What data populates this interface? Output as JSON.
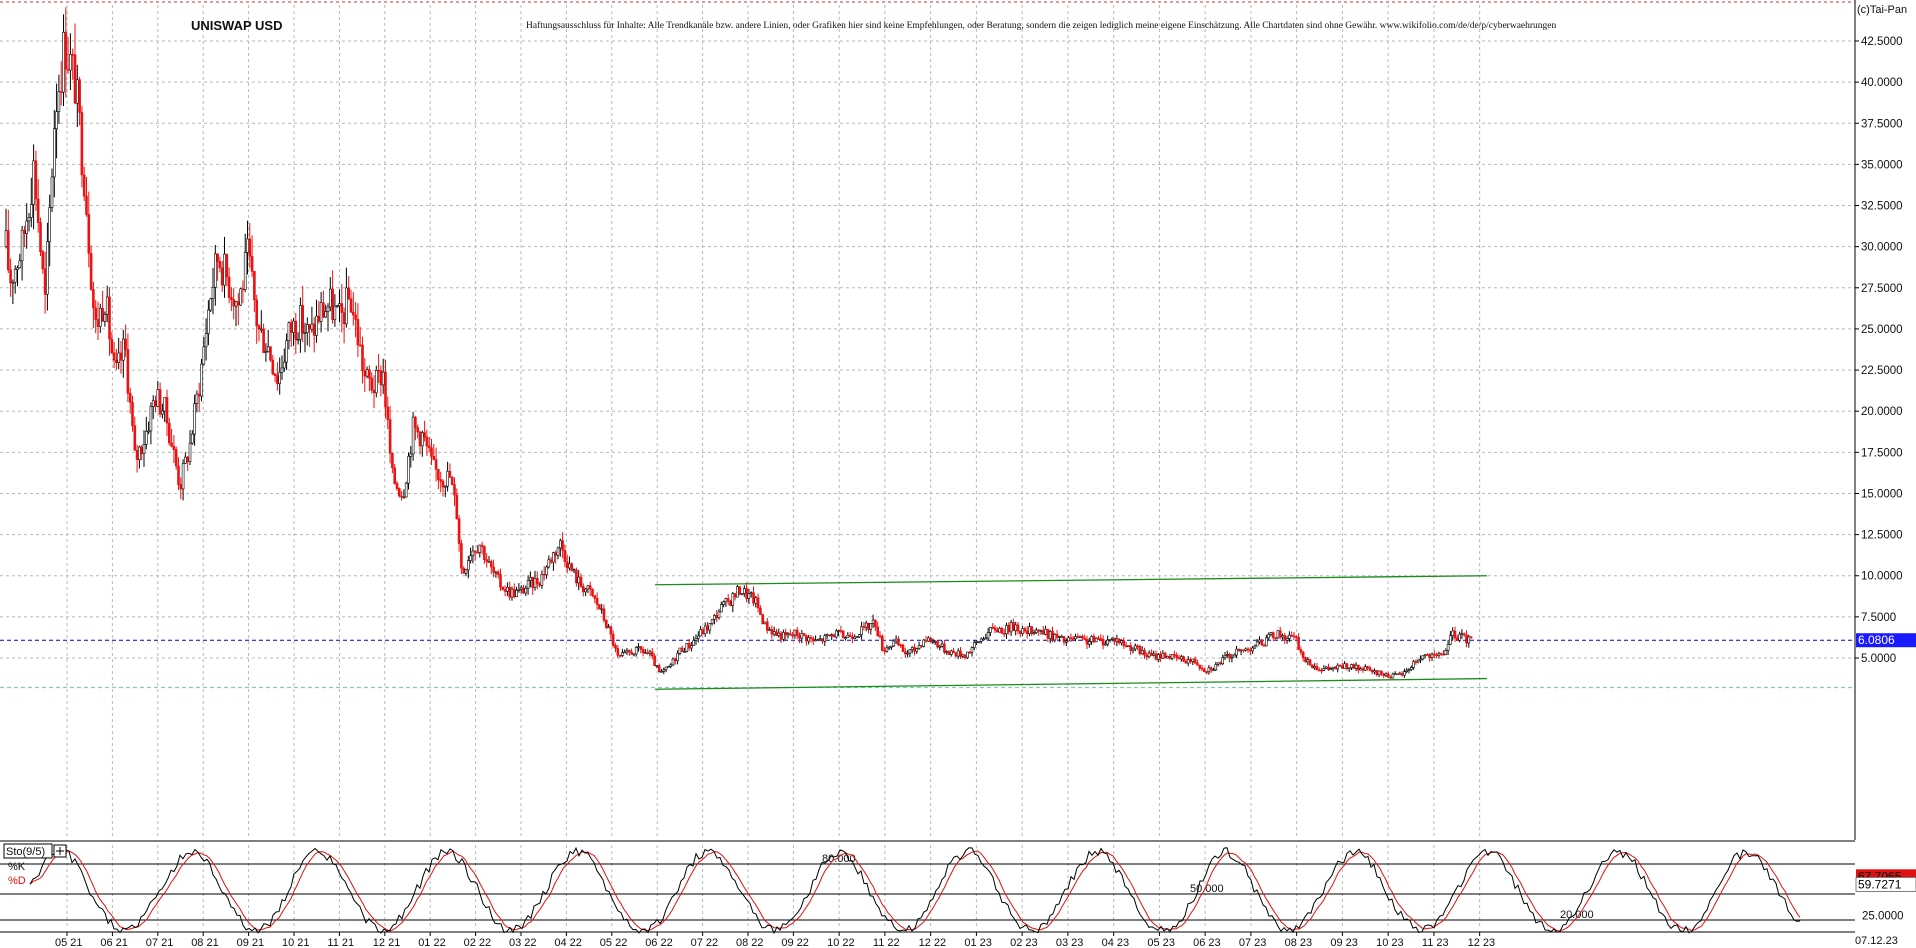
{
  "chart_data": [
    {
      "type": "candlestick",
      "title": "UNISWAP USD",
      "disclaimer": "Haftungsausschluss für Inhalte: Alle Trendkanäle bzw. andere Linien, oder Grafiken hier sind keine Empfehlungen, oder Beratung, sondern die zeigen lediglich meine eigene Einschätzung. Alle Chartdaten sind ohne Gewähr.  www.wikifolio.com/de/de/p/cyberwaehrungen",
      "copyright": "(c)Tai-Pan",
      "ylim": [
        2.5,
        44.4
      ],
      "y_ticks": [
        "5.0000",
        "7.5000",
        "10.0000",
        "12.5000",
        "15.0000",
        "17.5000",
        "20.0000",
        "22.5000",
        "25.0000",
        "27.5000",
        "30.0000",
        "32.5000",
        "35.0000",
        "37.5000",
        "40.0000",
        "42.5000"
      ],
      "x_ticks": [
        "05 21",
        "06 21",
        "07 21",
        "08 21",
        "09 21",
        "10 21",
        "11 21",
        "12 21",
        "01 22",
        "02 22",
        "03 22",
        "04 22",
        "05 22",
        "06 22",
        "07 22",
        "08 22",
        "09 22",
        "10 22",
        "11 22",
        "12 22",
        "01 23",
        "02 23",
        "03 23",
        "04 23",
        "05 23",
        "06 23",
        "07 23",
        "08 23",
        "09 23",
        "10 23",
        "11 23",
        "12 23"
      ],
      "last_date_label": "07.12.23",
      "last_price": 6.0806,
      "last_price_label": "6.0806",
      "grid": true,
      "price_path": [
        [
          0,
          33.0
        ],
        [
          10,
          28.0
        ],
        [
          22,
          30.0
        ],
        [
          34,
          35.0
        ],
        [
          45,
          26.5
        ],
        [
          55,
          38.5
        ],
        [
          65,
          42.5
        ],
        [
          75,
          40.0
        ],
        [
          85,
          34.0
        ],
        [
          95,
          25.0
        ],
        [
          105,
          27.0
        ],
        [
          115,
          22.0
        ],
        [
          125,
          24.0
        ],
        [
          135,
          17.0
        ],
        [
          145,
          18.5
        ],
        [
          155,
          21.0
        ],
        [
          165,
          20.0
        ],
        [
          172,
          18.0
        ],
        [
          180,
          15.5
        ],
        [
          190,
          18.0
        ],
        [
          200,
          22.0
        ],
        [
          210,
          27.0
        ],
        [
          218,
          29.5
        ],
        [
          228,
          28.0
        ],
        [
          238,
          26.5
        ],
        [
          248,
          29.5
        ],
        [
          258,
          25.0
        ],
        [
          268,
          24.0
        ],
        [
          278,
          22.0
        ],
        [
          290,
          25.0
        ],
        [
          300,
          25.5
        ],
        [
          310,
          24.5
        ],
        [
          320,
          26.0
        ],
        [
          330,
          26.5
        ],
        [
          340,
          25.5
        ],
        [
          350,
          27.0
        ],
        [
          358,
          24.5
        ],
        [
          365,
          22.0
        ],
        [
          375,
          21.5
        ],
        [
          383,
          22.5
        ],
        [
          392,
          16.0
        ],
        [
          403,
          15.0
        ],
        [
          413,
          19.0
        ],
        [
          423,
          18.5
        ],
        [
          433,
          16.5
        ],
        [
          443,
          16.0
        ],
        [
          450,
          16.0
        ],
        [
          457,
          13.8
        ],
        [
          462,
          10.0
        ],
        [
          470,
          11.5
        ],
        [
          480,
          12.0
        ],
        [
          490,
          10.5
        ],
        [
          500,
          9.5
        ],
        [
          510,
          9.0
        ],
        [
          520,
          9.0
        ],
        [
          530,
          9.5
        ],
        [
          540,
          9.8
        ],
        [
          550,
          11.0
        ],
        [
          560,
          12.0
        ],
        [
          570,
          10.5
        ],
        [
          580,
          9.5
        ],
        [
          590,
          9.0
        ],
        [
          600,
          8.0
        ],
        [
          610,
          6.5
        ],
        [
          618,
          5.0
        ],
        [
          628,
          5.3
        ],
        [
          640,
          5.5
        ],
        [
          650,
          5.2
        ],
        [
          660,
          4.0
        ],
        [
          670,
          4.5
        ],
        [
          680,
          5.5
        ],
        [
          690,
          5.8
        ],
        [
          700,
          6.5
        ],
        [
          710,
          7.0
        ],
        [
          720,
          8.0
        ],
        [
          730,
          8.5
        ],
        [
          740,
          9.2
        ],
        [
          748,
          8.8
        ],
        [
          755,
          8.5
        ],
        [
          765,
          7.0
        ],
        [
          775,
          6.5
        ],
        [
          785,
          6.3
        ],
        [
          795,
          6.5
        ],
        [
          805,
          6.3
        ],
        [
          815,
          6.0
        ],
        [
          825,
          6.2
        ],
        [
          835,
          6.5
        ],
        [
          845,
          6.3
        ],
        [
          855,
          6.5
        ],
        [
          865,
          6.8
        ],
        [
          875,
          7.2
        ],
        [
          883,
          5.5
        ],
        [
          895,
          6.0
        ],
        [
          905,
          5.3
        ],
        [
          915,
          5.5
        ],
        [
          925,
          6.2
        ],
        [
          935,
          6.0
        ],
        [
          945,
          5.5
        ],
        [
          955,
          5.3
        ],
        [
          965,
          5.2
        ],
        [
          975,
          5.8
        ],
        [
          985,
          6.4
        ],
        [
          995,
          6.8
        ],
        [
          1005,
          6.7
        ],
        [
          1015,
          7.0
        ],
        [
          1025,
          6.5
        ],
        [
          1035,
          6.8
        ],
        [
          1045,
          6.5
        ],
        [
          1055,
          6.3
        ],
        [
          1065,
          6.0
        ],
        [
          1075,
          6.2
        ],
        [
          1085,
          6.0
        ],
        [
          1095,
          6.1
        ],
        [
          1105,
          6.0
        ],
        [
          1115,
          6.2
        ],
        [
          1125,
          5.8
        ],
        [
          1135,
          5.6
        ],
        [
          1145,
          5.2
        ],
        [
          1155,
          5.1
        ],
        [
          1165,
          5.2
        ],
        [
          1175,
          5.0
        ],
        [
          1185,
          4.9
        ],
        [
          1195,
          4.8
        ],
        [
          1205,
          4.3
        ],
        [
          1215,
          4.5
        ],
        [
          1225,
          5.0
        ],
        [
          1235,
          5.3
        ],
        [
          1245,
          5.5
        ],
        [
          1255,
          5.8
        ],
        [
          1265,
          6.0
        ],
        [
          1275,
          6.5
        ],
        [
          1285,
          6.3
        ],
        [
          1295,
          6.2
        ],
        [
          1305,
          4.8
        ],
        [
          1315,
          4.5
        ],
        [
          1325,
          4.3
        ],
        [
          1335,
          4.4
        ],
        [
          1345,
          4.5
        ],
        [
          1355,
          4.4
        ],
        [
          1365,
          4.3
        ],
        [
          1375,
          4.1
        ],
        [
          1385,
          4.0
        ],
        [
          1395,
          3.9
        ],
        [
          1405,
          4.1
        ],
        [
          1415,
          4.8
        ],
        [
          1425,
          5.2
        ],
        [
          1435,
          5.0
        ],
        [
          1445,
          5.4
        ],
        [
          1452,
          6.4
        ],
        [
          1460,
          6.3
        ],
        [
          1468,
          6.1
        ],
        [
          1472,
          6.08
        ]
      ],
      "trend_lines": [
        {
          "color": "#1a8c1a",
          "points": [
            [
              655,
              9.45
            ],
            [
              1487,
              10.0
            ]
          ]
        },
        {
          "color": "#1a8c1a",
          "points": [
            [
              655,
              3.1
            ],
            [
              1487,
              3.75
            ]
          ]
        }
      ],
      "reference_lines": [
        {
          "value": 6.0806,
          "color": "#0000cc",
          "style": "dashed"
        },
        {
          "value": 3.2,
          "color": "#66cc99",
          "style": "dashed"
        }
      ]
    },
    {
      "type": "line",
      "indicator": "Sto(9/5)",
      "legend": [
        "%K",
        "%D"
      ],
      "colors": {
        "k": "#000000",
        "d": "#e01010"
      },
      "ylim": [
        12,
        110
      ],
      "levels": [
        {
          "value": 80,
          "label": "80.000"
        },
        {
          "value": 50,
          "label": "50.000"
        },
        {
          "value": 20,
          "label": "20.000"
        }
      ],
      "y_tick_label": "25.0000",
      "last_k_label": "67.7065",
      "last_d_label": "59.7271"
    }
  ]
}
